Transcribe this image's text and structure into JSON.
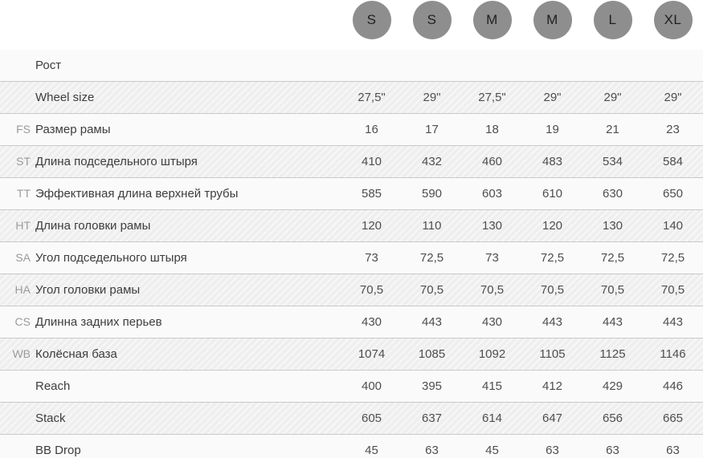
{
  "sizes": {
    "labels": [
      "S",
      "S",
      "M",
      "M",
      "L",
      "XL"
    ]
  },
  "table": {
    "rows": [
      {
        "code": "",
        "label": "Рост",
        "values": [
          "",
          "",
          "",
          "",
          "",
          ""
        ]
      },
      {
        "code": "",
        "label": "Wheel size",
        "values": [
          "27,5\"",
          "29\"",
          "27,5\"",
          "29\"",
          "29\"",
          "29\""
        ]
      },
      {
        "code": "FS",
        "label": "Размер рамы",
        "values": [
          "16",
          "17",
          "18",
          "19",
          "21",
          "23"
        ]
      },
      {
        "code": "ST",
        "label": "Длина подседельного штыря",
        "values": [
          "410",
          "432",
          "460",
          "483",
          "534",
          "584"
        ]
      },
      {
        "code": "TT",
        "label": "Эффективная длина верхней трубы",
        "values": [
          "585",
          "590",
          "603",
          "610",
          "630",
          "650"
        ]
      },
      {
        "code": "HT",
        "label": "Длина головки рамы",
        "values": [
          "120",
          "110",
          "130",
          "120",
          "130",
          "140"
        ]
      },
      {
        "code": "SA",
        "label": "Угол подседельного штыря",
        "values": [
          "73",
          "72,5",
          "73",
          "72,5",
          "72,5",
          "72,5"
        ]
      },
      {
        "code": "HA",
        "label": "Угол головки рамы",
        "values": [
          "70,5",
          "70,5",
          "70,5",
          "70,5",
          "70,5",
          "70,5"
        ]
      },
      {
        "code": "CS",
        "label": "Длинна задних перьев",
        "values": [
          "430",
          "443",
          "430",
          "443",
          "443",
          "443"
        ]
      },
      {
        "code": "WB",
        "label": "Колёсная база",
        "values": [
          "1074",
          "1085",
          "1092",
          "1105",
          "1125",
          "1146"
        ]
      },
      {
        "code": "",
        "label": "Reach",
        "values": [
          "400",
          "395",
          "415",
          "412",
          "429",
          "446"
        ]
      },
      {
        "code": "",
        "label": "Stack",
        "values": [
          "605",
          "637",
          "614",
          "647",
          "656",
          "665"
        ]
      },
      {
        "code": "",
        "label": "BB Drop",
        "values": [
          "45",
          "63",
          "45",
          "63",
          "63",
          "63"
        ]
      }
    ]
  },
  "colors": {
    "circle_bg": "#8e8e8e",
    "circle_text": "#1f1f1f",
    "row_light": "#fafafa",
    "row_gray": "#f1f1f1",
    "border": "#c9c9c9",
    "label_text": "#3d3d3d",
    "code_text": "#9b9b9b",
    "value_text": "#4e4e4e"
  }
}
